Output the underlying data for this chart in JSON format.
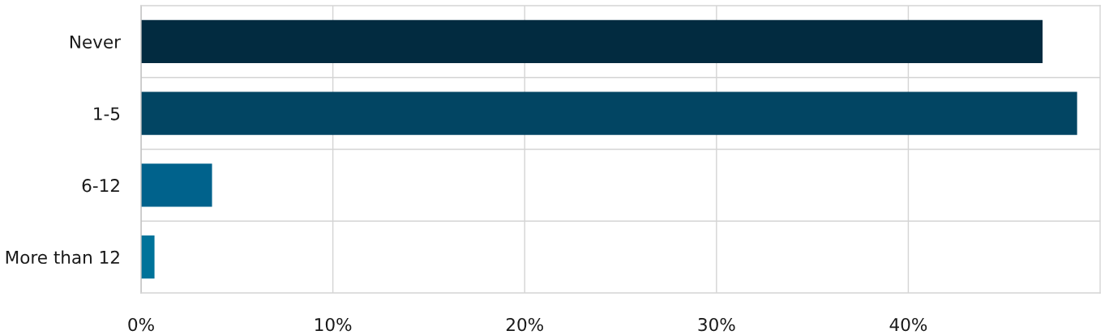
{
  "chart_data": {
    "type": "bar",
    "orientation": "horizontal",
    "categories": [
      "Never",
      "1-5",
      "6-12",
      "More than 12"
    ],
    "values": [
      47,
      48.8,
      3.7,
      0.7
    ],
    "colors": [
      "#022b40",
      "#024563",
      "#00628c",
      "#00739a"
    ],
    "xlim": [
      0,
      50
    ],
    "xticks": [
      {
        "value": 0,
        "label": "0%"
      },
      {
        "value": 10,
        "label": "10%"
      },
      {
        "value": 20,
        "label": "20%"
      },
      {
        "value": 30,
        "label": "30%"
      },
      {
        "value": 40,
        "label": "40%"
      }
    ],
    "grid": true
  }
}
